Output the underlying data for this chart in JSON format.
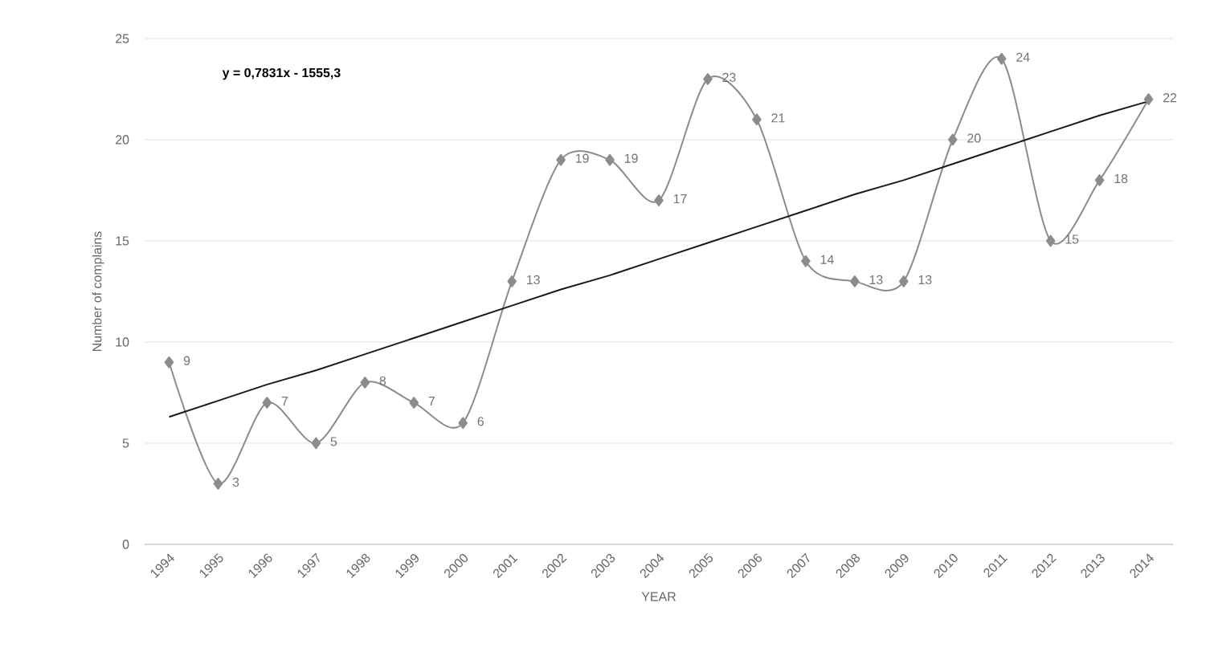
{
  "chart_data": {
    "type": "line",
    "xlabel": "YEAR",
    "ylabel": "Number of complains",
    "categories": [
      "1994",
      "1995",
      "1996",
      "1997",
      "1998",
      "1999",
      "2000",
      "2001",
      "2002",
      "2003",
      "2004",
      "2005",
      "2006",
      "2007",
      "2008",
      "2009",
      "2010",
      "2011",
      "2012",
      "2013",
      "2014"
    ],
    "series": [
      {
        "color": "#8c8c8c",
        "marker": "diamond",
        "values": [
          9,
          3,
          7,
          5,
          8,
          7,
          6,
          13,
          19,
          19,
          17,
          23,
          21,
          14,
          13,
          13,
          20,
          24,
          15,
          18,
          22
        ],
        "value_labels": [
          "9",
          "3",
          "7",
          "5",
          "8",
          "7",
          "6",
          "13",
          "19",
          "19",
          "17",
          "23",
          "21",
          "14",
          "13",
          "13",
          "20",
          "24",
          "15",
          "18",
          "22"
        ]
      },
      {
        "type": "line",
        "color": "#1a1a1a",
        "marker": "none",
        "values": [
          6.3,
          7.1,
          7.9,
          8.6,
          9.4,
          10.2,
          11.0,
          11.8,
          12.6,
          13.3,
          14.1,
          14.9,
          15.7,
          16.5,
          17.3,
          18.0,
          18.8,
          19.6,
          20.4,
          21.2,
          21.9
        ]
      }
    ],
    "ylim": [
      0,
      25
    ],
    "yticks": [
      0,
      5,
      10,
      15,
      20,
      25
    ],
    "grid": "y",
    "annotations": [
      "y = 0,7831x - 1555,3"
    ]
  }
}
